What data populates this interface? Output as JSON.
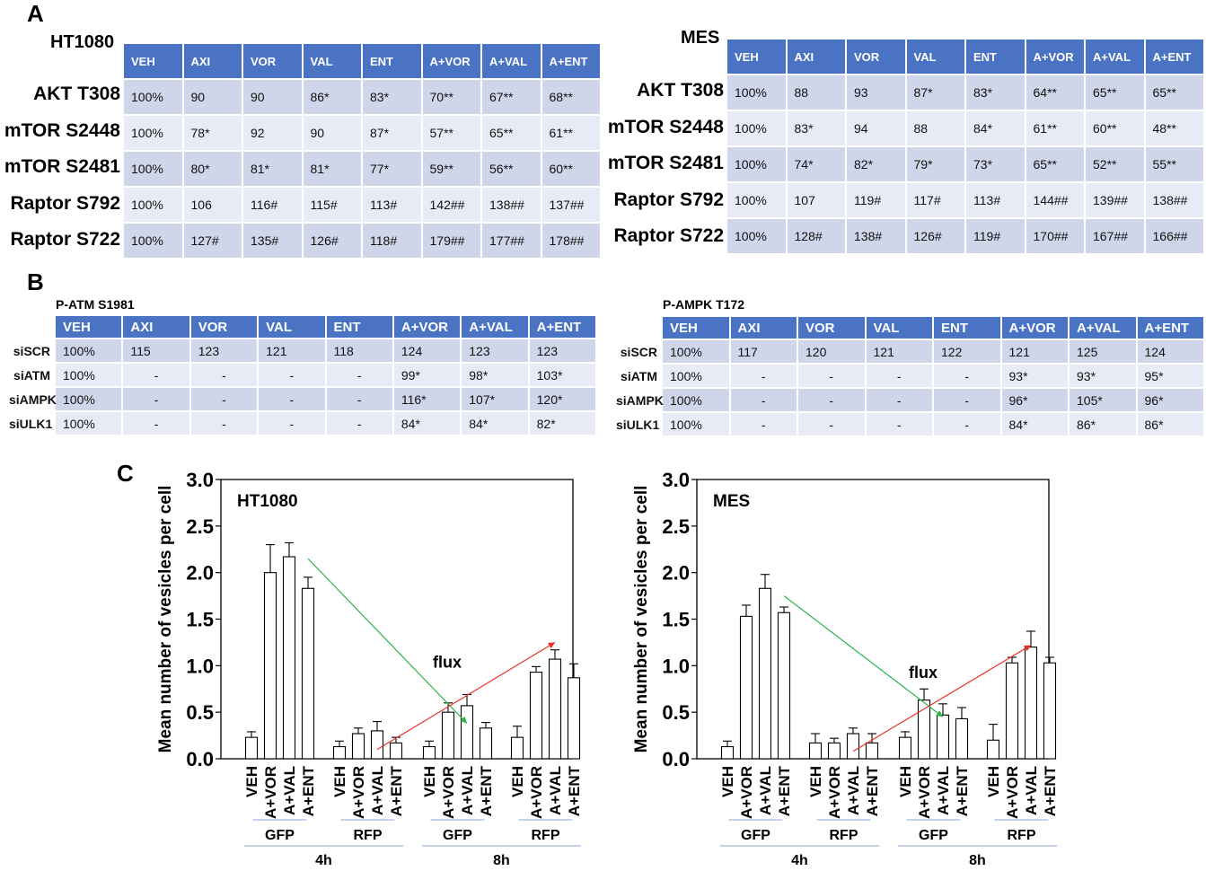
{
  "panels": {
    "a": "A",
    "b": "B",
    "c": "C"
  },
  "panel_a": {
    "columns": [
      "VEH",
      "AXI",
      "VOR",
      "VAL",
      "ENT",
      "A+VOR",
      "A+VAL",
      "A+ENT"
    ],
    "tables": [
      {
        "title": "HT1080",
        "rows": [
          {
            "label": "AKT T308",
            "values": [
              "100%",
              "90",
              "90",
              "86*",
              "83*",
              "70**",
              "67**",
              "68**"
            ]
          },
          {
            "label": "mTOR S2448",
            "values": [
              "100%",
              "78*",
              "92",
              "90",
              "87*",
              "57**",
              "65**",
              "61**"
            ]
          },
          {
            "label": "mTOR S2481",
            "values": [
              "100%",
              "80*",
              "81*",
              "81*",
              "77*",
              "59**",
              "56**",
              "60**"
            ]
          },
          {
            "label": "Raptor S792",
            "values": [
              "100%",
              "106",
              "116#",
              "115#",
              "113#",
              "142##",
              "138##",
              "137##"
            ]
          },
          {
            "label": "Raptor S722",
            "values": [
              "100%",
              "127#",
              "135#",
              "126#",
              "118#",
              "179##",
              "177##",
              "178##"
            ]
          }
        ]
      },
      {
        "title": "MES",
        "rows": [
          {
            "label": "AKT T308",
            "values": [
              "100%",
              "88",
              "93",
              "87*",
              "83*",
              "64**",
              "65**",
              "65**"
            ]
          },
          {
            "label": "mTOR S2448",
            "values": [
              "100%",
              "83*",
              "94",
              "88",
              "84*",
              "61**",
              "60**",
              "48**"
            ]
          },
          {
            "label": "mTOR S2481",
            "values": [
              "100%",
              "74*",
              "82*",
              "79*",
              "73*",
              "65**",
              "52**",
              "55**"
            ]
          },
          {
            "label": "Raptor S792",
            "values": [
              "100%",
              "107",
              "119#",
              "117#",
              "113#",
              "144##",
              "139##",
              "138##"
            ]
          },
          {
            "label": "Raptor S722",
            "values": [
              "100%",
              "128#",
              "138#",
              "126#",
              "119#",
              "170##",
              "167##",
              "166##"
            ]
          }
        ]
      }
    ]
  },
  "panel_b": {
    "columns": [
      "VEH",
      "AXI",
      "VOR",
      "VAL",
      "ENT",
      "A+VOR",
      "A+VAL",
      "A+ENT"
    ],
    "tables": [
      {
        "title": "P-ATM S1981",
        "rows": [
          {
            "label": "siSCR",
            "values": [
              "100%",
              "115",
              "123",
              "121",
              "118",
              "124",
              "123",
              "123"
            ]
          },
          {
            "label": "siATM",
            "values": [
              "100%",
              "-",
              "-",
              "-",
              "-",
              "99*",
              "98*",
              "103*"
            ]
          },
          {
            "label": "siAMPK",
            "values": [
              "100%",
              "-",
              "-",
              "-",
              "-",
              "116*",
              "107*",
              "120*"
            ]
          },
          {
            "label": "siULK1",
            "values": [
              "100%",
              "-",
              "-",
              "-",
              "-",
              "84*",
              "84*",
              "82*"
            ]
          }
        ]
      },
      {
        "title": "P-AMPK T172",
        "rows": [
          {
            "label": "siSCR",
            "values": [
              "100%",
              "117",
              "120",
              "121",
              "122",
              "121",
              "125",
              "124"
            ]
          },
          {
            "label": "siATM",
            "values": [
              "100%",
              "-",
              "-",
              "-",
              "-",
              "93*",
              "93*",
              "95*"
            ]
          },
          {
            "label": "siAMPK",
            "values": [
              "100%",
              "-",
              "-",
              "-",
              "-",
              "96*",
              "105*",
              "96*"
            ]
          },
          {
            "label": "siULK1",
            "values": [
              "100%",
              "-",
              "-",
              "-",
              "-",
              "84*",
              "86*",
              "86*"
            ]
          }
        ]
      }
    ]
  },
  "chart_data": [
    {
      "type": "bar",
      "title": "HT1080",
      "ylabel": "Mean number of vesicles per cell",
      "ylim": [
        0,
        3.0
      ],
      "yticks": [
        "0.0",
        "0.5",
        "1.0",
        "1.5",
        "2.0",
        "2.5",
        "3.0"
      ],
      "categories": [
        "VEH",
        "A+VOR",
        "A+VAL",
        "A+ENT"
      ],
      "groups": [
        {
          "name": "GFP",
          "time": "4h",
          "values": [
            0.23,
            2.0,
            2.17,
            1.83
          ],
          "errors": [
            0.06,
            0.3,
            0.15,
            0.12
          ]
        },
        {
          "name": "RFP",
          "time": "4h",
          "values": [
            0.13,
            0.27,
            0.3,
            0.17
          ],
          "errors": [
            0.06,
            0.06,
            0.1,
            0.06
          ]
        },
        {
          "name": "GFP",
          "time": "8h",
          "values": [
            0.13,
            0.5,
            0.57,
            0.33
          ],
          "errors": [
            0.06,
            0.1,
            0.12,
            0.06
          ]
        },
        {
          "name": "RFP",
          "time": "8h",
          "values": [
            0.23,
            0.93,
            1.07,
            0.87
          ],
          "errors": [
            0.12,
            0.06,
            0.1,
            0.15
          ]
        }
      ],
      "time_labels": [
        "4h",
        "8h"
      ],
      "annotation": "flux",
      "arrows": [
        {
          "color": "#2db34a",
          "from": {
            "group": 0,
            "bar": 3,
            "y": 2.15
          },
          "to": {
            "group": 2,
            "bar": 2,
            "y": 0.38
          }
        },
        {
          "color": "#e8302a",
          "from": {
            "group": 1,
            "bar": 2,
            "y": 0.1
          },
          "to": {
            "group": 3,
            "bar": 2,
            "y": 1.25
          }
        }
      ]
    },
    {
      "type": "bar",
      "title": "MES",
      "ylabel": "Mean number of vesicles per cell",
      "ylim": [
        0,
        3.0
      ],
      "yticks": [
        "0.0",
        "0.5",
        "1.0",
        "1.5",
        "2.0",
        "2.5",
        "3.0"
      ],
      "categories": [
        "VEH",
        "A+VOR",
        "A+VAL",
        "A+ENT"
      ],
      "groups": [
        {
          "name": "GFP",
          "time": "4h",
          "values": [
            0.13,
            1.53,
            1.83,
            1.57
          ],
          "errors": [
            0.06,
            0.12,
            0.15,
            0.06
          ]
        },
        {
          "name": "RFP",
          "time": "4h",
          "values": [
            0.17,
            0.17,
            0.27,
            0.17
          ],
          "errors": [
            0.1,
            0.05,
            0.06,
            0.1
          ]
        },
        {
          "name": "GFP",
          "time": "8h",
          "values": [
            0.23,
            0.63,
            0.47,
            0.43
          ],
          "errors": [
            0.06,
            0.12,
            0.12,
            0.12
          ]
        },
        {
          "name": "RFP",
          "time": "8h",
          "values": [
            0.2,
            1.03,
            1.2,
            1.03
          ],
          "errors": [
            0.17,
            0.06,
            0.17,
            0.06
          ]
        }
      ],
      "time_labels": [
        "4h",
        "8h"
      ],
      "annotation": "flux",
      "arrows": [
        {
          "color": "#2db34a",
          "from": {
            "group": 0,
            "bar": 3,
            "y": 1.75
          },
          "to": {
            "group": 2,
            "bar": 2,
            "y": 0.45
          }
        },
        {
          "color": "#e8302a",
          "from": {
            "group": 1,
            "bar": 2,
            "y": 0.08
          },
          "to": {
            "group": 3,
            "bar": 2,
            "y": 1.22
          }
        }
      ]
    }
  ]
}
